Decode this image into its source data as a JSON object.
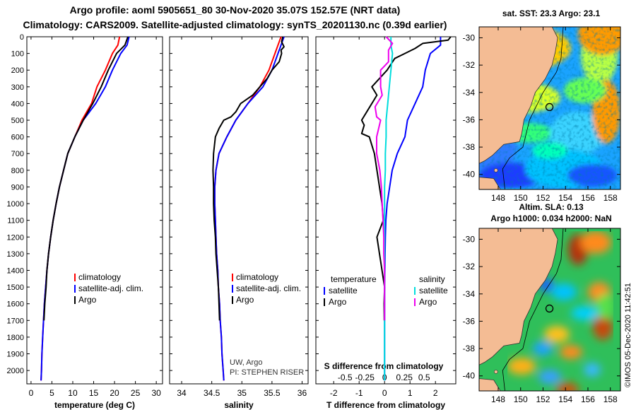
{
  "header": {
    "title_line1": "Argo profile: aoml 5905651_80 30-Nov-2020 35.07S 152.57E (NRT data)",
    "title_line2": "Climatology: CARS2009. Satellite-adjusted climatology: synTS_20201130.nc (0.39d earlier)"
  },
  "maps": {
    "sst_title": "sat. SST: 23.3 Argo: 23.1",
    "sla_title1": "Altim. SLA: 0.13",
    "sla_title2": "Argo h1000: 0.034 h2000: NaN",
    "lon_ticks": [
      "148",
      "150",
      "152",
      "154",
      "156",
      "158"
    ],
    "lat_ticks": [
      "-30",
      "-32",
      "-34",
      "-36",
      "-38",
      "-40"
    ],
    "land_color": "#f4bc94",
    "marker_lon": 152.57,
    "marker_lat": -35.07,
    "credit": "©IMOS 05-Dec-2020 11:42:51"
  },
  "chart_data": [
    {
      "type": "line",
      "title": "",
      "xlabel": "temperature (deg C)",
      "ylabel": "",
      "xlim": [
        -1,
        31.5
      ],
      "ylim": [
        2080,
        0
      ],
      "x_ticks": [
        0,
        5,
        10,
        15,
        20,
        25,
        30
      ],
      "y_ticks": [
        0,
        100,
        200,
        300,
        400,
        500,
        600,
        700,
        800,
        900,
        1000,
        1100,
        1200,
        1300,
        1400,
        1500,
        1600,
        1700,
        1800,
        1900,
        2000
      ],
      "legend": [
        "climatology",
        "satellite-adj. clim.",
        "Argo"
      ],
      "series": [
        {
          "name": "climatology",
          "color": "#ff0000",
          "points": [
            [
              21.2,
              0
            ],
            [
              20.8,
              50
            ],
            [
              19.5,
              100
            ],
            [
              17.8,
              200
            ],
            [
              15.8,
              300
            ],
            [
              14.5,
              400
            ],
            [
              12.2,
              500
            ],
            [
              10.5,
              600
            ],
            [
              8.8,
              700
            ],
            [
              7.8,
              800
            ],
            [
              6.8,
              900
            ],
            [
              6.0,
              1000
            ],
            [
              5.3,
              1100
            ],
            [
              4.7,
              1200
            ],
            [
              4.2,
              1300
            ],
            [
              3.8,
              1400
            ],
            [
              3.5,
              1500
            ],
            [
              3.2,
              1600
            ],
            [
              3.0,
              1700
            ],
            [
              2.8,
              1800
            ],
            [
              2.6,
              1900
            ],
            [
              2.5,
              2000
            ],
            [
              2.4,
              2060
            ]
          ]
        },
        {
          "name": "satellite-adj. clim.",
          "color": "#0000ff",
          "points": [
            [
              23.5,
              0
            ],
            [
              23.0,
              50
            ],
            [
              21.5,
              100
            ],
            [
              19.5,
              200
            ],
            [
              17.8,
              300
            ],
            [
              15.5,
              400
            ],
            [
              12.5,
              500
            ],
            [
              10.5,
              600
            ],
            [
              8.8,
              700
            ],
            [
              7.8,
              800
            ],
            [
              6.8,
              900
            ],
            [
              6.0,
              1000
            ],
            [
              5.3,
              1100
            ],
            [
              4.7,
              1200
            ],
            [
              4.2,
              1300
            ],
            [
              3.8,
              1400
            ],
            [
              3.5,
              1500
            ],
            [
              3.2,
              1600
            ],
            [
              3.0,
              1700
            ],
            [
              2.8,
              1800
            ],
            [
              2.6,
              1900
            ],
            [
              2.5,
              2000
            ],
            [
              2.4,
              2060
            ]
          ]
        },
        {
          "name": "Argo",
          "color": "#000000",
          "points": [
            [
              23.2,
              0
            ],
            [
              22.5,
              50
            ],
            [
              20.5,
              100
            ],
            [
              18.5,
              200
            ],
            [
              16.8,
              300
            ],
            [
              14.8,
              400
            ],
            [
              12.5,
              500
            ],
            [
              10.5,
              600
            ],
            [
              8.8,
              700
            ],
            [
              7.8,
              800
            ],
            [
              6.8,
              900
            ],
            [
              6.0,
              1000
            ],
            [
              5.3,
              1100
            ],
            [
              4.7,
              1200
            ],
            [
              4.2,
              1300
            ],
            [
              3.8,
              1400
            ],
            [
              3.6,
              1500
            ],
            [
              3.3,
              1600
            ],
            [
              3.1,
              1700
            ]
          ]
        }
      ]
    },
    {
      "type": "line",
      "title": "",
      "xlabel": "salinity",
      "ylabel": "",
      "xlim": [
        33.8,
        36.1
      ],
      "ylim": [
        2080,
        0
      ],
      "x_ticks": [
        34,
        34.5,
        35,
        35.5,
        36
      ],
      "x_tick_labels": [
        "34",
        "34.5",
        "35",
        "35.5",
        "36"
      ],
      "legend": [
        "climatology",
        "satellite-adj. clim.",
        "Argo"
      ],
      "annotation": [
        "UW, Argo",
        "PI: STEPHEN RISER"
      ],
      "series": [
        {
          "name": "climatology",
          "color": "#ff0000",
          "points": [
            [
              35.65,
              0
            ],
            [
              35.6,
              50
            ],
            [
              35.55,
              100
            ],
            [
              35.45,
              200
            ],
            [
              35.3,
              300
            ],
            [
              35.1,
              400
            ],
            [
              34.9,
              500
            ],
            [
              34.75,
              600
            ],
            [
              34.62,
              700
            ],
            [
              34.57,
              800
            ],
            [
              34.55,
              900
            ],
            [
              34.55,
              1000
            ],
            [
              34.56,
              1100
            ],
            [
              34.57,
              1200
            ],
            [
              34.58,
              1300
            ],
            [
              34.6,
              1400
            ],
            [
              34.61,
              1500
            ],
            [
              34.63,
              1600
            ],
            [
              34.64,
              1700
            ],
            [
              34.66,
              1800
            ],
            [
              34.67,
              1900
            ],
            [
              34.69,
              2000
            ],
            [
              34.7,
              2060
            ]
          ]
        },
        {
          "name": "satellite-adj. clim.",
          "color": "#0000ff",
          "points": [
            [
              35.7,
              0
            ],
            [
              35.65,
              50
            ],
            [
              35.6,
              100
            ],
            [
              35.5,
              200
            ],
            [
              35.35,
              300
            ],
            [
              35.1,
              400
            ],
            [
              34.9,
              500
            ],
            [
              34.75,
              600
            ],
            [
              34.62,
              700
            ],
            [
              34.57,
              800
            ],
            [
              34.55,
              900
            ],
            [
              34.55,
              1000
            ],
            [
              34.56,
              1100
            ],
            [
              34.57,
              1200
            ],
            [
              34.58,
              1300
            ],
            [
              34.6,
              1400
            ],
            [
              34.61,
              1500
            ],
            [
              34.63,
              1600
            ],
            [
              34.64,
              1700
            ],
            [
              34.66,
              1800
            ],
            [
              34.67,
              1900
            ],
            [
              34.69,
              2000
            ],
            [
              34.7,
              2060
            ]
          ]
        },
        {
          "name": "Argo",
          "color": "#000000",
          "points": [
            [
              35.68,
              0
            ],
            [
              35.66,
              30
            ],
            [
              35.7,
              60
            ],
            [
              35.65,
              80
            ],
            [
              35.66,
              100
            ],
            [
              35.62,
              150
            ],
            [
              35.5,
              200
            ],
            [
              35.42,
              250
            ],
            [
              35.3,
              300
            ],
            [
              35.18,
              350
            ],
            [
              34.98,
              400
            ],
            [
              34.9,
              450
            ],
            [
              34.82,
              480
            ],
            [
              34.7,
              500
            ],
            [
              34.62,
              550
            ],
            [
              34.56,
              600
            ],
            [
              34.53,
              700
            ],
            [
              34.52,
              800
            ],
            [
              34.53,
              900
            ],
            [
              34.53,
              1000
            ],
            [
              34.54,
              1100
            ],
            [
              34.56,
              1200
            ],
            [
              34.57,
              1300
            ],
            [
              34.59,
              1400
            ],
            [
              34.61,
              1500
            ],
            [
              34.62,
              1600
            ],
            [
              34.63,
              1700
            ]
          ]
        }
      ]
    },
    {
      "type": "line",
      "title": "",
      "xlabel": "T difference from climatology",
      "ylabel": "",
      "xlim": [
        -2.7,
        2.8
      ],
      "ylim": [
        2080,
        0
      ],
      "x_ticks": [
        -2,
        -1,
        0,
        1,
        2
      ],
      "x_tick_labels": [
        "-2",
        "-1",
        "0",
        "1",
        "2"
      ],
      "x2label": "S difference from climatology",
      "x2_ticks": [
        -0.5,
        -0.25,
        0,
        0.25,
        0.5
      ],
      "x2_tick_labels": [
        "-0.5",
        "-0.25",
        "0",
        "0.25",
        "0.5"
      ],
      "legend_left_header": "temperature",
      "legend_right_header": "salinity",
      "legend": [
        "satellite",
        "Argo",
        "satellite",
        "Argo"
      ],
      "series": [
        {
          "name": "T satellite",
          "axis": "T",
          "color": "#0000ff",
          "points": [
            [
              2.2,
              0
            ],
            [
              2.2,
              50
            ],
            [
              1.8,
              100
            ],
            [
              1.6,
              200
            ],
            [
              1.5,
              300
            ],
            [
              1.2,
              400
            ],
            [
              0.9,
              500
            ],
            [
              0.8,
              600
            ],
            [
              0.5,
              700
            ],
            [
              0.3,
              800
            ],
            [
              0.2,
              900
            ],
            [
              0.1,
              1000
            ],
            [
              0.05,
              1100
            ],
            [
              0.03,
              1200
            ],
            [
              0.02,
              1300
            ],
            [
              0.01,
              1400
            ],
            [
              0.0,
              1500
            ],
            [
              0.0,
              1600
            ],
            [
              0.0,
              1700
            ],
            [
              0.0,
              2060
            ]
          ]
        },
        {
          "name": "T Argo",
          "axis": "T",
          "color": "#000000",
          "points": [
            [
              2.6,
              0
            ],
            [
              2.5,
              20
            ],
            [
              1.5,
              40
            ],
            [
              1.2,
              70
            ],
            [
              0.8,
              100
            ],
            [
              0.4,
              130
            ],
            [
              0.1,
              200
            ],
            [
              -0.5,
              300
            ],
            [
              -0.3,
              350
            ],
            [
              -0.7,
              450
            ],
            [
              -0.9,
              500
            ],
            [
              -0.8,
              530
            ],
            [
              -0.9,
              580
            ],
            [
              -0.6,
              600
            ],
            [
              -0.4,
              700
            ],
            [
              -0.3,
              800
            ],
            [
              -0.2,
              900
            ],
            [
              -0.1,
              1000
            ],
            [
              -0.05,
              1100
            ],
            [
              -0.3,
              1200
            ],
            [
              -0.2,
              1300
            ],
            [
              -0.1,
              1400
            ],
            [
              0.0,
              1500
            ],
            [
              -0.02,
              1600
            ],
            [
              -0.01,
              1700
            ]
          ]
        },
        {
          "name": "S satellite",
          "axis": "S",
          "color": "#00dddd",
          "points": [
            [
              0.08,
              0
            ],
            [
              0.08,
              50
            ],
            [
              0.1,
              100
            ],
            [
              0.08,
              200
            ],
            [
              0.06,
              300
            ],
            [
              0.04,
              400
            ],
            [
              0.02,
              500
            ],
            [
              0.02,
              600
            ],
            [
              0.01,
              700
            ],
            [
              0.01,
              800
            ],
            [
              0.0,
              900
            ],
            [
              0.0,
              1000
            ],
            [
              0.0,
              2060
            ]
          ]
        },
        {
          "name": "S Argo",
          "axis": "S",
          "color": "#ee00ee",
          "points": [
            [
              0.02,
              0
            ],
            [
              0.1,
              40
            ],
            [
              0.05,
              80
            ],
            [
              0.05,
              100
            ],
            [
              0.05,
              150
            ],
            [
              -0.05,
              200
            ],
            [
              -0.05,
              250
            ],
            [
              -0.05,
              300
            ],
            [
              -0.03,
              350
            ],
            [
              -0.12,
              420
            ],
            [
              -0.1,
              480
            ],
            [
              -0.05,
              500
            ],
            [
              -0.1,
              600
            ],
            [
              -0.1,
              700
            ],
            [
              -0.06,
              800
            ],
            [
              -0.04,
              900
            ],
            [
              -0.03,
              1000
            ],
            [
              -0.02,
              1100
            ],
            [
              -0.01,
              1200
            ],
            [
              -0.01,
              1300
            ],
            [
              0.0,
              1400
            ],
            [
              0.0,
              1500
            ],
            [
              0.0,
              1600
            ],
            [
              0.0,
              1700
            ]
          ]
        }
      ]
    }
  ]
}
